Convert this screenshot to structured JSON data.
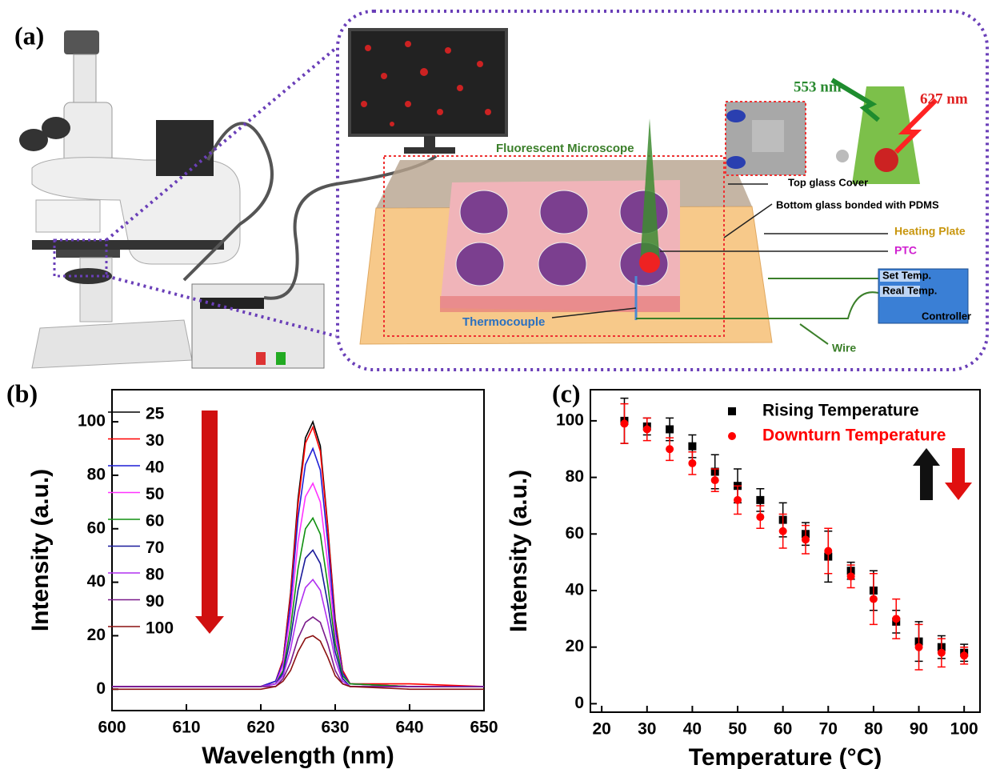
{
  "diagram": {
    "panel_label": "(a)",
    "wavelength_excitation": "553 nm",
    "wavelength_emission": "627 nm",
    "microscope": "Fluorescent Microscope",
    "top_glass": "Top glass Cover",
    "bottom_glass": "Bottom glass bonded with PDMS",
    "heating_plate": "Heating Plate",
    "ptc": "PTC",
    "set_temp": "Set Temp.",
    "real_temp": "Real Temp.",
    "controller": "Controller",
    "thermocouple": "Thermocouple",
    "wire": "Wire"
  },
  "chart_data": [
    {
      "type": "line",
      "panel_label": "(b)",
      "x_label": "Wavelength (nm)",
      "y_label": "Intensity (a.u.)",
      "x": [
        600,
        610,
        620,
        622,
        623,
        624,
        625,
        626,
        627,
        628,
        629,
        630,
        631,
        632,
        640,
        650
      ],
      "xlim": [
        600,
        650
      ],
      "xticks": [
        600,
        610,
        620,
        630,
        640,
        650
      ],
      "ylim": [
        -8,
        112
      ],
      "yticks": [
        0,
        20,
        40,
        60,
        80,
        100
      ],
      "legend": "upper left",
      "series": [
        {
          "name": "25",
          "color": "#000000",
          "values": [
            1,
            1,
            1,
            3,
            11,
            36,
            71,
            94,
            100,
            91,
            61,
            26,
            7,
            2,
            1,
            1
          ]
        },
        {
          "name": "30",
          "color": "#ff0000",
          "values": [
            1,
            1,
            1,
            3,
            11,
            35,
            69,
            92,
            98,
            89,
            60,
            25,
            7,
            2,
            2,
            1
          ]
        },
        {
          "name": "40",
          "color": "#1f1fd6",
          "values": [
            1,
            1,
            1,
            3,
            10,
            32,
            64,
            84,
            90,
            82,
            55,
            23,
            6,
            2,
            1,
            1
          ]
        },
        {
          "name": "50",
          "color": "#ff33ff",
          "values": [
            1,
            1,
            1,
            2,
            9,
            28,
            55,
            72,
            77,
            70,
            47,
            20,
            5,
            2,
            1,
            1
          ]
        },
        {
          "name": "60",
          "color": "#109010",
          "values": [
            1,
            1,
            1,
            2,
            7,
            23,
            45,
            60,
            64,
            58,
            39,
            17,
            5,
            2,
            1,
            1
          ]
        },
        {
          "name": "70",
          "color": "#1a1a9a",
          "values": [
            1,
            1,
            1,
            2,
            6,
            19,
            37,
            49,
            52,
            47,
            32,
            14,
            4,
            1,
            1,
            1
          ]
        },
        {
          "name": "80",
          "color": "#b030f0",
          "values": [
            1,
            1,
            1,
            2,
            5,
            15,
            29,
            38,
            41,
            37,
            25,
            11,
            3,
            1,
            1,
            1
          ]
        },
        {
          "name": "90",
          "color": "#7a1a8a",
          "values": [
            1,
            1,
            1,
            1,
            4,
            10,
            19,
            25,
            27,
            25,
            17,
            7,
            2,
            1,
            1,
            1
          ]
        },
        {
          "name": "100",
          "color": "#8b1010",
          "values": [
            0,
            0,
            0,
            1,
            3,
            7,
            14,
            19,
            20,
            18,
            12,
            5,
            2,
            1,
            0,
            0
          ]
        }
      ]
    },
    {
      "type": "scatter",
      "panel_label": "(c)",
      "x_label": "Temperature (°C)",
      "y_label": "Intensity (a.u.)",
      "x": [
        25,
        30,
        35,
        40,
        45,
        50,
        55,
        60,
        65,
        70,
        75,
        80,
        85,
        90,
        95,
        100
      ],
      "xlim": [
        17.5,
        103.5
      ],
      "xticks": [
        20,
        30,
        40,
        50,
        60,
        70,
        80,
        90,
        100
      ],
      "ylim": [
        -3,
        111
      ],
      "yticks": [
        0,
        20,
        40,
        60,
        80,
        100
      ],
      "legend": "upper right",
      "series": [
        {
          "name": "Rising Temperature",
          "color": "#000000",
          "marker": "square",
          "values": [
            100,
            98,
            97,
            91,
            82,
            77,
            72,
            65,
            60,
            52,
            47,
            40,
            29,
            22,
            20,
            18
          ],
          "errors": [
            8,
            3,
            4,
            4,
            6,
            6,
            4,
            6,
            4,
            9,
            3,
            7,
            4,
            7,
            4,
            3
          ]
        },
        {
          "name": "Downturn Temperature",
          "color": "#ff0000",
          "marker": "circle",
          "values": [
            99,
            97,
            90,
            85,
            79,
            72,
            66,
            61,
            58,
            54,
            45,
            37,
            30,
            20,
            18,
            17
          ],
          "errors": [
            7,
            4,
            4,
            4,
            4,
            5,
            4,
            6,
            5,
            8,
            4,
            9,
            7,
            8,
            5,
            3
          ]
        }
      ]
    }
  ]
}
